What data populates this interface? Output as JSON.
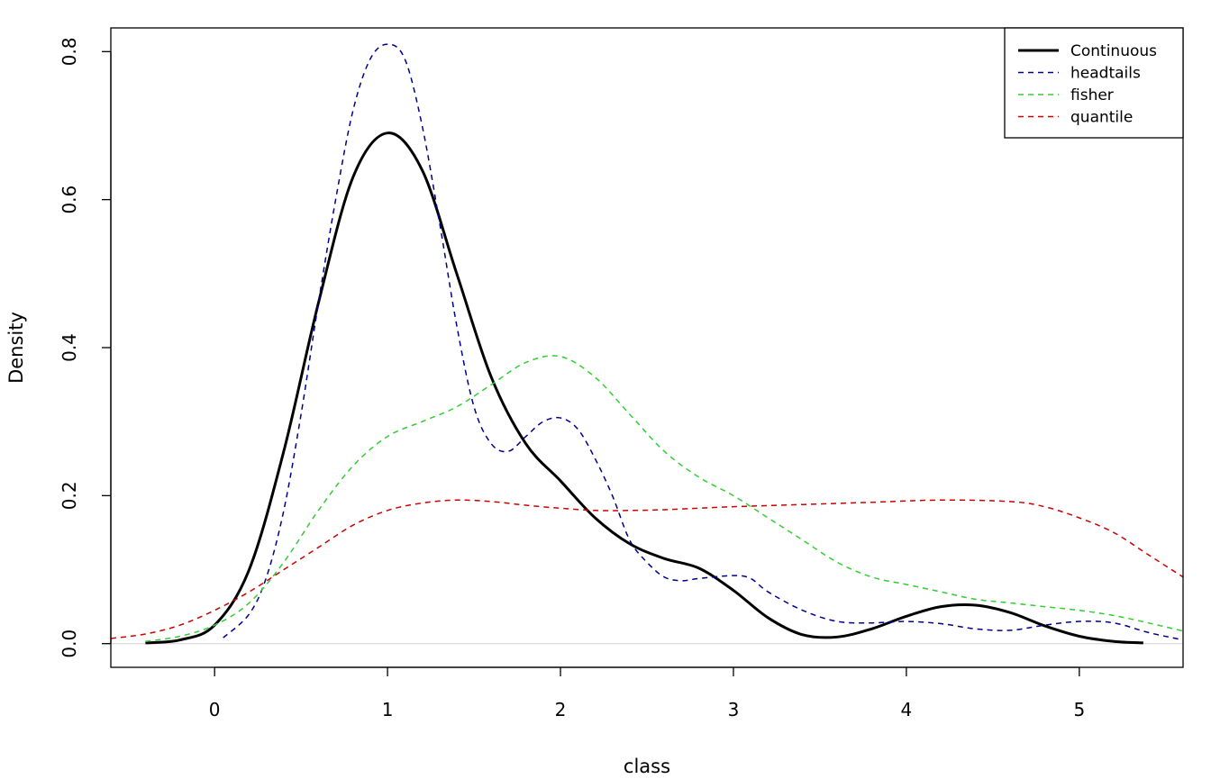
{
  "chart_data": {
    "type": "line",
    "title": "",
    "xlabel": "class",
    "ylabel": "Density",
    "xlim": [
      -0.6,
      5.6
    ],
    "ylim": [
      -0.032,
      0.832
    ],
    "xticks": [
      0,
      1,
      2,
      3,
      4,
      5
    ],
    "xtick_labels": [
      "0",
      "1",
      "2",
      "3",
      "4",
      "5"
    ],
    "yticks": [
      0.0,
      0.2,
      0.4,
      0.6,
      0.8
    ],
    "ytick_labels": [
      "0.0",
      "0.2",
      "0.4",
      "0.6",
      "0.8"
    ],
    "grid": false,
    "baseline": 0,
    "legend_position": "top-right",
    "series": [
      {
        "name": "Continuous",
        "color": "#000000",
        "dash": "solid",
        "width": 3,
        "x": [
          -0.4,
          -0.2,
          0,
          0.2,
          0.4,
          0.6,
          0.8,
          1.0,
          1.2,
          1.4,
          1.6,
          1.8,
          2.0,
          2.2,
          2.4,
          2.6,
          2.8,
          3.0,
          3.2,
          3.4,
          3.6,
          3.8,
          4.0,
          4.2,
          4.4,
          4.6,
          4.8,
          5.0,
          5.2,
          5.37
        ],
        "y": [
          0.001,
          0.005,
          0.025,
          0.1,
          0.26,
          0.46,
          0.63,
          0.69,
          0.64,
          0.5,
          0.36,
          0.27,
          0.22,
          0.17,
          0.135,
          0.115,
          0.102,
          0.072,
          0.035,
          0.012,
          0.009,
          0.02,
          0.037,
          0.05,
          0.052,
          0.042,
          0.024,
          0.01,
          0.003,
          0.001
        ]
      },
      {
        "name": "headtails",
        "color": "#00008B",
        "dash": "dashed",
        "width": 1.5,
        "x": [
          0.05,
          0.2,
          0.3,
          0.4,
          0.5,
          0.6,
          0.7,
          0.8,
          0.9,
          1.0,
          1.1,
          1.2,
          1.3,
          1.4,
          1.5,
          1.6,
          1.7,
          1.8,
          1.9,
          2.0,
          2.1,
          2.2,
          2.3,
          2.4,
          2.5,
          2.6,
          2.7,
          2.8,
          3.0,
          3.1,
          3.2,
          3.4,
          3.6,
          3.8,
          4.0,
          4.2,
          4.4,
          4.6,
          4.8,
          5.0,
          5.2,
          5.4,
          5.6
        ],
        "y": [
          0.008,
          0.04,
          0.09,
          0.18,
          0.31,
          0.46,
          0.6,
          0.72,
          0.79,
          0.81,
          0.79,
          0.7,
          0.57,
          0.43,
          0.32,
          0.27,
          0.26,
          0.28,
          0.3,
          0.305,
          0.29,
          0.25,
          0.2,
          0.14,
          0.11,
          0.09,
          0.085,
          0.088,
          0.092,
          0.088,
          0.07,
          0.045,
          0.03,
          0.028,
          0.03,
          0.027,
          0.02,
          0.018,
          0.025,
          0.03,
          0.028,
          0.015,
          0.005
        ]
      },
      {
        "name": "fisher",
        "color": "#32CD32",
        "dash": "dashed",
        "width": 1.5,
        "x": [
          -0.4,
          -0.2,
          0,
          0.2,
          0.4,
          0.6,
          0.8,
          1.0,
          1.2,
          1.4,
          1.6,
          1.8,
          2.0,
          2.2,
          2.4,
          2.6,
          2.8,
          3.0,
          3.2,
          3.4,
          3.6,
          3.8,
          4.0,
          4.2,
          4.4,
          4.6,
          4.8,
          5.0,
          5.2,
          5.4,
          5.6
        ],
        "y": [
          0.003,
          0.01,
          0.025,
          0.055,
          0.11,
          0.18,
          0.24,
          0.28,
          0.3,
          0.32,
          0.35,
          0.38,
          0.388,
          0.36,
          0.31,
          0.26,
          0.225,
          0.2,
          0.17,
          0.14,
          0.11,
          0.09,
          0.08,
          0.07,
          0.06,
          0.055,
          0.05,
          0.045,
          0.038,
          0.028,
          0.017
        ]
      },
      {
        "name": "quantile",
        "color": "#CD0000",
        "dash": "dashed",
        "width": 1.5,
        "x": [
          -0.6,
          -0.4,
          -0.2,
          0,
          0.2,
          0.4,
          0.6,
          0.8,
          1.0,
          1.2,
          1.4,
          1.6,
          1.8,
          2.0,
          2.2,
          2.4,
          2.6,
          2.8,
          3.0,
          3.4,
          3.8,
          4.2,
          4.6,
          4.8,
          5.0,
          5.2,
          5.4,
          5.6
        ],
        "y": [
          0.007,
          0.013,
          0.025,
          0.045,
          0.07,
          0.1,
          0.13,
          0.16,
          0.18,
          0.19,
          0.194,
          0.192,
          0.187,
          0.183,
          0.18,
          0.18,
          0.181,
          0.183,
          0.185,
          0.188,
          0.191,
          0.194,
          0.192,
          0.185,
          0.17,
          0.15,
          0.12,
          0.09
        ]
      }
    ]
  }
}
